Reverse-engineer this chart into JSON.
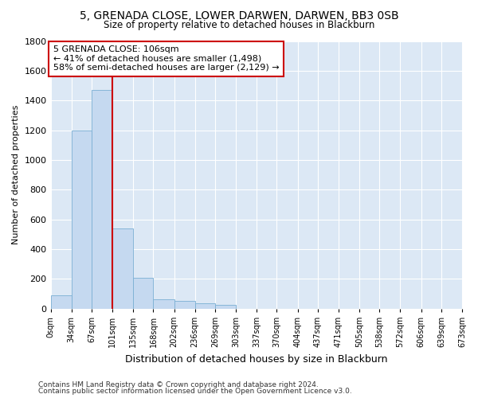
{
  "title": "5, GRENADA CLOSE, LOWER DARWEN, DARWEN, BB3 0SB",
  "subtitle": "Size of property relative to detached houses in Blackburn",
  "xlabel": "Distribution of detached houses by size in Blackburn",
  "ylabel": "Number of detached properties",
  "bar_color": "#c5d9f0",
  "bar_edge_color": "#7aafd4",
  "annotation_box_color": "#cc0000",
  "vline_color": "#cc0000",
  "vline_x": 101,
  "annotation_line1": "5 GRENADA CLOSE: 106sqm",
  "annotation_line2": "← 41% of detached houses are smaller (1,498)",
  "annotation_line3": "58% of semi-detached houses are larger (2,129) →",
  "bin_edges": [
    0,
    34,
    67,
    101,
    135,
    168,
    202,
    236,
    269,
    303,
    337,
    370,
    404,
    437,
    471,
    505,
    538,
    572,
    606,
    639,
    673
  ],
  "bar_heights": [
    90,
    1200,
    1470,
    540,
    205,
    65,
    50,
    35,
    25,
    0,
    0,
    0,
    0,
    0,
    0,
    0,
    0,
    0,
    0,
    0
  ],
  "ylim": [
    0,
    1800
  ],
  "yticks": [
    0,
    200,
    400,
    600,
    800,
    1000,
    1200,
    1400,
    1600,
    1800
  ],
  "footer_line1": "Contains HM Land Registry data © Crown copyright and database right 2024.",
  "footer_line2": "Contains public sector information licensed under the Open Government Licence v3.0.",
  "background_color": "#ffffff",
  "plot_bg_color": "#dce8f5"
}
